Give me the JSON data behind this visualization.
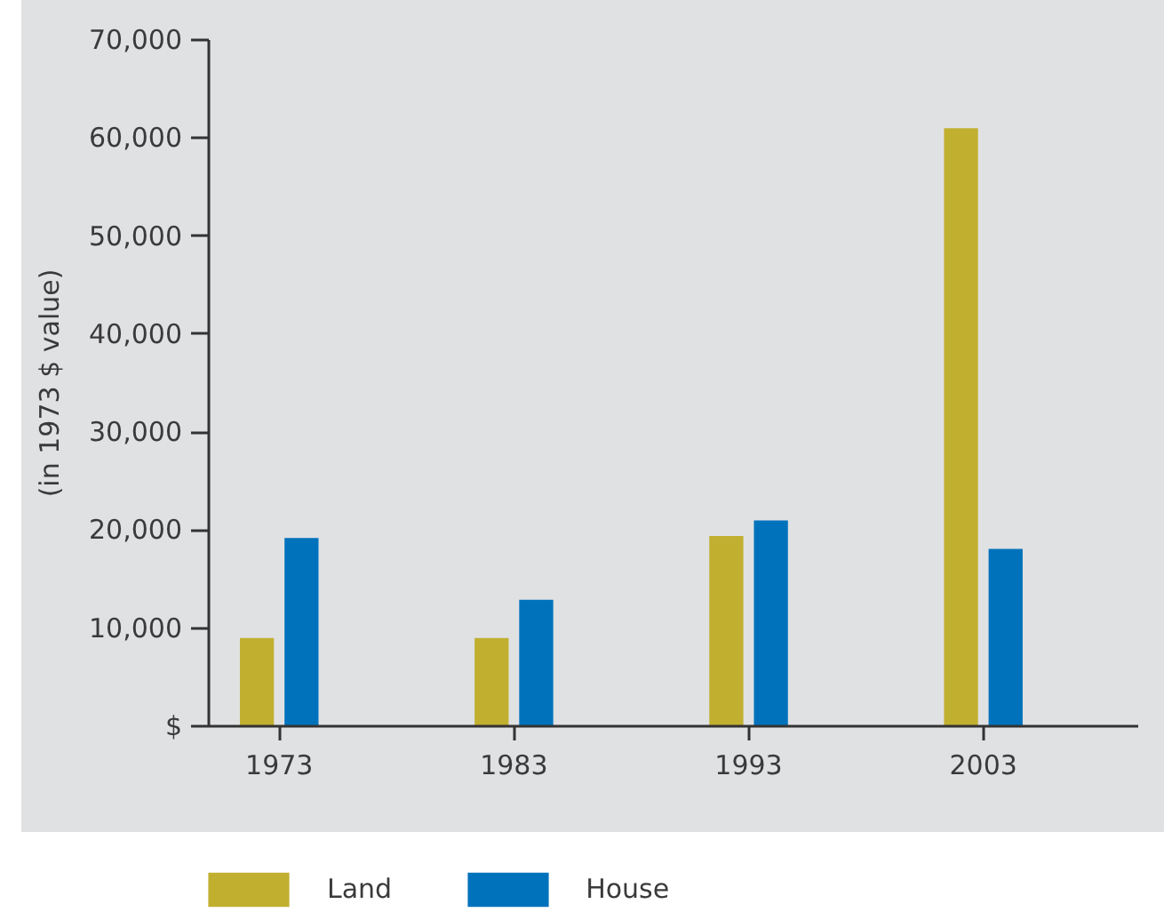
{
  "chart_data": {
    "type": "bar",
    "ylabel": "(in 1973 $ value)",
    "categories": [
      "1973",
      "1983",
      "1993",
      "2003"
    ],
    "series": [
      {
        "name": "Land",
        "color": "#c1af30",
        "values": [
          9000,
          9000,
          19400,
          61000
        ]
      },
      {
        "name": "House",
        "color": "#0072bc",
        "values": [
          19200,
          12900,
          21000,
          18100
        ]
      }
    ],
    "ylim": [
      0,
      70000
    ],
    "yticks": [
      {
        "value": 0,
        "label": "$"
      },
      {
        "value": 10000,
        "label": "10,000"
      },
      {
        "value": 20000,
        "label": "20,000"
      },
      {
        "value": 30000,
        "label": "30,000"
      },
      {
        "value": 40000,
        "label": "40,000"
      },
      {
        "value": 50000,
        "label": "50,000"
      },
      {
        "value": 60000,
        "label": "60,000"
      },
      {
        "value": 70000,
        "label": "70,000"
      }
    ],
    "legend": "bottom"
  }
}
